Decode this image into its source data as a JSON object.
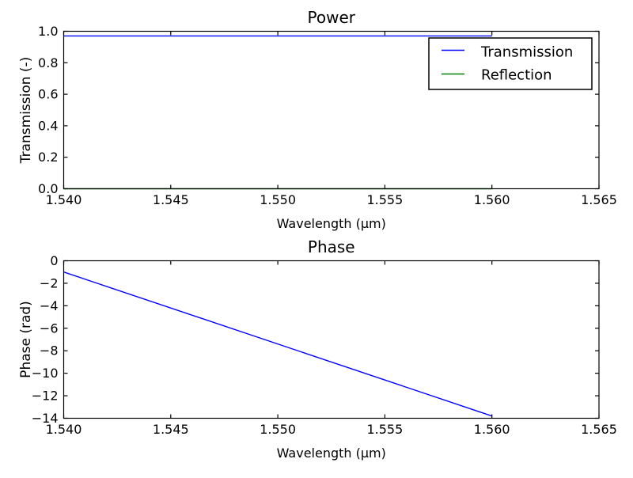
{
  "figure": {
    "background": "#ffffff",
    "axes_color": "#000000",
    "text_color": "#000000"
  },
  "chart_data": [
    {
      "type": "line",
      "title": "Power",
      "xlabel": "Wavelength (μm)",
      "ylabel": "Transmission (-)",
      "xlim": [
        1.54,
        1.565
      ],
      "ylim": [
        0.0,
        1.0
      ],
      "grid": false,
      "xtick_values": [
        1.54,
        1.545,
        1.55,
        1.555,
        1.56,
        1.565
      ],
      "xtick_labels": [
        "1.540",
        "1.545",
        "1.550",
        "1.555",
        "1.560",
        "1.565"
      ],
      "ytick_values": [
        0.0,
        0.2,
        0.4,
        0.6,
        0.8,
        1.0
      ],
      "ytick_labels": [
        "0.0",
        "0.2",
        "0.4",
        "0.6",
        "0.8",
        "1.0"
      ],
      "legend": {
        "position": "upper right",
        "entries": [
          {
            "label": "Transmission",
            "color": "#0000ff"
          },
          {
            "label": "Reflection",
            "color": "#008000"
          }
        ]
      },
      "series": [
        {
          "name": "Transmission",
          "color": "#0000ff",
          "x": [
            1.54,
            1.56
          ],
          "y": [
            0.97,
            0.97
          ]
        },
        {
          "name": "Reflection",
          "color": "#008000",
          "x": [
            1.54,
            1.56
          ],
          "y": [
            0.0,
            0.0
          ]
        }
      ]
    },
    {
      "type": "line",
      "title": "Phase",
      "xlabel": "Wavelength (μm)",
      "ylabel": "Phase (rad)",
      "xlim": [
        1.54,
        1.565
      ],
      "ylim": [
        -14,
        0
      ],
      "grid": false,
      "xtick_values": [
        1.54,
        1.545,
        1.55,
        1.555,
        1.56,
        1.565
      ],
      "xtick_labels": [
        "1.540",
        "1.545",
        "1.550",
        "1.555",
        "1.560",
        "1.565"
      ],
      "ytick_values": [
        0,
        -2,
        -4,
        -6,
        -8,
        -10,
        -12,
        -14
      ],
      "ytick_labels": [
        "0",
        "−2",
        "−4",
        "−6",
        "−8",
        "−10",
        "−12",
        "−14"
      ],
      "legend": null,
      "series": [
        {
          "name": "Phase",
          "color": "#0000ff",
          "x": [
            1.54,
            1.56
          ],
          "y": [
            -1.0,
            -13.8
          ]
        }
      ]
    }
  ]
}
